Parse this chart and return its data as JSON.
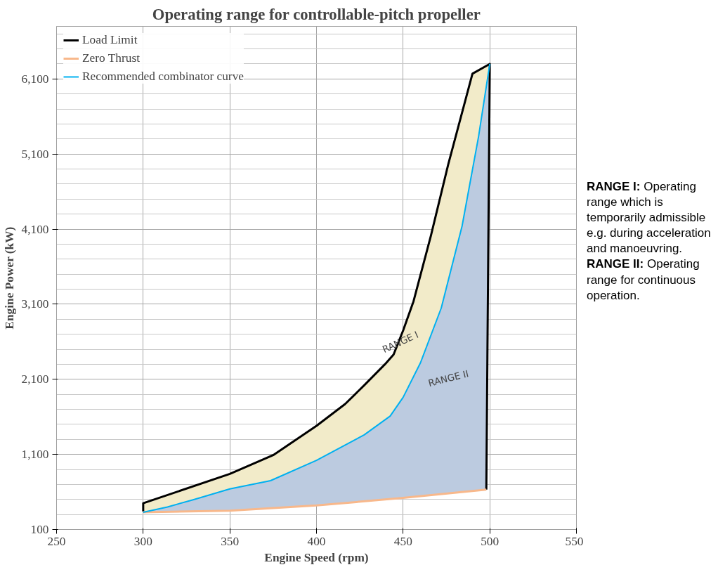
{
  "chart_data": {
    "type": "line",
    "title": "Operating range for controllable-pitch propeller",
    "xlabel": "Engine Speed (rpm)",
    "ylabel": "Engine Power (kW)",
    "xlim": [
      250,
      550
    ],
    "ylim": [
      100,
      6800
    ],
    "xticks": [
      250,
      300,
      350,
      400,
      450,
      500,
      550
    ],
    "yticks": [
      100,
      {
        "value": 300,
        "label": null
      },
      {
        "value": 500,
        "label": null
      },
      {
        "value": 700,
        "label": null
      },
      {
        "value": 900,
        "label": null
      },
      {
        "value": 1100,
        "label": "1,100"
      },
      {
        "value": 1300,
        "label": null
      },
      {
        "value": 1500,
        "label": null
      },
      {
        "value": 1700,
        "label": null
      },
      {
        "value": 1900,
        "label": null
      },
      {
        "value": 2100,
        "label": "2,100"
      },
      {
        "value": 2300,
        "label": null
      },
      {
        "value": 2500,
        "label": null
      },
      {
        "value": 2700,
        "label": null
      },
      {
        "value": 2900,
        "label": null
      },
      {
        "value": 3100,
        "label": "3,100"
      },
      {
        "value": 3300,
        "label": null
      },
      {
        "value": 3500,
        "label": null
      },
      {
        "value": 3700,
        "label": null
      },
      {
        "value": 3900,
        "label": null
      },
      {
        "value": 4100,
        "label": "4,100"
      },
      {
        "value": 4300,
        "label": null
      },
      {
        "value": 4500,
        "label": null
      },
      {
        "value": 4700,
        "label": null
      },
      {
        "value": 4900,
        "label": null
      },
      {
        "value": 5100,
        "label": "5,100"
      },
      {
        "value": 5300,
        "label": null
      },
      {
        "value": 5500,
        "label": null
      },
      {
        "value": 5700,
        "label": null
      },
      {
        "value": 5900,
        "label": null
      },
      {
        "value": 6100,
        "label": "6,100"
      },
      {
        "value": 6300,
        "label": null
      },
      {
        "value": 6500,
        "label": null
      },
      {
        "value": 6700,
        "label": null
      }
    ],
    "grid": true,
    "legend": "top left",
    "marker": "none",
    "line_style": "solid",
    "series": [
      {
        "name": "Load Limit",
        "color": "#000000",
        "x": [
          300,
          300,
          350,
          375,
          400,
          416.5,
          427.5,
          439.5,
          444.5,
          450,
          456,
          466,
          476,
          490,
          500,
          498
        ],
        "values": [
          340,
          450,
          840,
          1090,
          1480,
          1770,
          2020,
          2300,
          2430,
          2750,
          3140,
          4010,
          4960,
          6170,
          6300,
          630
        ]
      },
      {
        "name": "Zero Thrust",
        "color": "#f8b88b",
        "x": [
          300,
          350,
          400,
          450,
          498
        ],
        "values": [
          330,
          350,
          420,
          520,
          630
        ]
      },
      {
        "name": "Recommended combinator curve",
        "color": "#00b0f0",
        "x": [
          300,
          314,
          329.5,
          350,
          373.5,
          400,
          427.5,
          442.5,
          450,
          460,
          472,
          484,
          493.5,
          500
        ],
        "values": [
          330,
          400,
          500,
          640,
          750,
          1020,
          1360,
          1610,
          1860,
          2320,
          3050,
          4140,
          5330,
          6300
        ]
      }
    ],
    "annotations": [
      "RANGE I",
      "RANGE II",
      "RANGE I: Operating range which is temporarily admissible e.g. during acceleration and manoeuvring.",
      "RANGE II: Operating range for continuous operation."
    ]
  }
}
